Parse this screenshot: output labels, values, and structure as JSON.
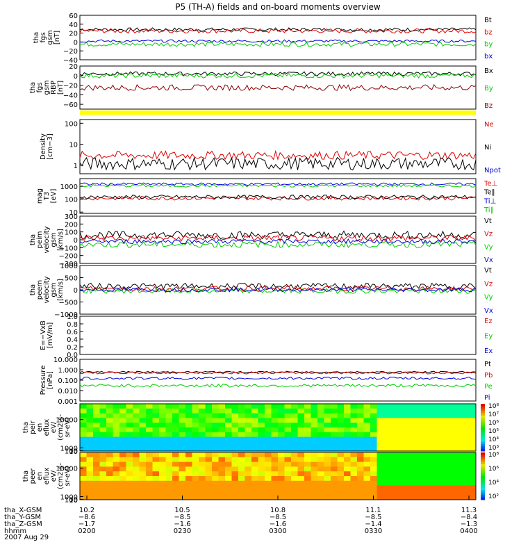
{
  "title": "P5 (TH-A) fields and on-board moments overview",
  "date": "2007 Aug 29",
  "colors": {
    "black": "#000000",
    "red": "#dd0000",
    "darkred": "#8b0000",
    "green": "#00cc00",
    "blue": "#0000dd",
    "yellow": "#ffff00"
  },
  "chart_data": [
    {
      "type": "line",
      "id": "fgs",
      "ylabel": [
        "tha",
        "fgs",
        "gsm",
        "[nT]"
      ],
      "ylim": [
        -40,
        60
      ],
      "ticks": [
        "60",
        "40",
        "20",
        "0",
        "−20",
        "−40"
      ],
      "tick_values": [
        60,
        40,
        20,
        0,
        -20,
        -40
      ],
      "series": [
        {
          "name": "Bt",
          "color": "#000000",
          "base": 28,
          "amp": 4
        },
        {
          "name": "bz",
          "color": "#dd0000",
          "base": 25,
          "amp": 5
        },
        {
          "name": "by",
          "color": "#00cc00",
          "base": -5,
          "amp": 5
        },
        {
          "name": "bx",
          "color": "#0000dd",
          "base": 2,
          "amp": 3
        }
      ]
    },
    {
      "type": "line",
      "id": "fgs_rbp",
      "ylabel": [
        "tha",
        "fgs",
        "gsm",
        "RBP",
        "[nT]"
      ],
      "ylim": [
        -70,
        20
      ],
      "ticks": [
        "20",
        "0",
        "−20",
        "−40",
        "−60"
      ],
      "tick_values": [
        20,
        0,
        -20,
        -40,
        -60
      ],
      "series": [
        {
          "name": "Bx",
          "color": "#000000",
          "base": 4,
          "amp": 4
        },
        {
          "name": "By",
          "color": "#00cc00",
          "base": 0,
          "amp": 5
        },
        {
          "name": "Bz",
          "color": "#8b0000",
          "base": -25,
          "amp": 6
        }
      ]
    },
    {
      "type": "line",
      "id": "density",
      "ylabel": [
        "Density",
        "[cm−3]"
      ],
      "ylim": [
        0.4,
        150
      ],
      "log": true,
      "ticks": [
        "100",
        "10",
        "1"
      ],
      "tick_values": [
        100,
        10,
        1
      ],
      "series": [
        {
          "name": "Ne",
          "color": "#dd0000",
          "base": 3,
          "amp": 0.4
        },
        {
          "name": "Ni",
          "color": "#000000",
          "base": 1.2,
          "amp": 0.6
        },
        {
          "name": "Npot",
          "color": "#0000dd",
          "base": 0,
          "amp": 0
        }
      ]
    },
    {
      "type": "line",
      "id": "temp",
      "ylabel": [
        "mag",
        "T3",
        "[eV]"
      ],
      "ylim": [
        8,
        4000
      ],
      "log": true,
      "ticks": [
        "1000",
        "100",
        "10"
      ],
      "tick_values": [
        1000,
        100,
        10
      ],
      "series": [
        {
          "name": "Te⊥",
          "color": "#dd0000",
          "base": 120,
          "amp": 0.3
        },
        {
          "name": "Te‖",
          "color": "#000000",
          "base": 150,
          "amp": 0.3
        },
        {
          "name": "Ti⊥",
          "color": "#0000dd",
          "base": 1500,
          "amp": 0.2
        },
        {
          "name": "Ti‖",
          "color": "#00cc00",
          "base": 1100,
          "amp": 0.2
        }
      ]
    },
    {
      "type": "line",
      "id": "peim",
      "ylabel": [
        "tha",
        "peim",
        "velocity",
        "gsm",
        "[km/s]"
      ],
      "ylim": [
        -300,
        300
      ],
      "ticks": [
        "300",
        "200",
        "100",
        "0",
        "−100",
        "−200",
        "−300"
      ],
      "tick_values": [
        300,
        200,
        100,
        0,
        -100,
        -200,
        -300
      ],
      "series": [
        {
          "name": "Vt",
          "color": "#000000",
          "base": 60,
          "amp": 50
        },
        {
          "name": "Vz",
          "color": "#dd0000",
          "base": 20,
          "amp": 40
        },
        {
          "name": "Vy",
          "color": "#00cc00",
          "base": -60,
          "amp": 40
        },
        {
          "name": "Vx",
          "color": "#0000dd",
          "base": -20,
          "amp": 30
        }
      ]
    },
    {
      "type": "line",
      "id": "peem",
      "ylabel": [
        "tha",
        "peem",
        "velocity",
        "gsm",
        "[km/s]"
      ],
      "ylim": [
        -1000,
        1000
      ],
      "ticks": [
        "1000",
        "500",
        "0",
        "−500",
        "−1000"
      ],
      "tick_values": [
        1000,
        500,
        0,
        -500,
        -1000
      ],
      "series": [
        {
          "name": "Vt",
          "color": "#000000",
          "base": 150,
          "amp": 120
        },
        {
          "name": "Vz",
          "color": "#dd0000",
          "base": 50,
          "amp": 100
        },
        {
          "name": "Vy",
          "color": "#00cc00",
          "base": -50,
          "amp": 100
        },
        {
          "name": "Vx",
          "color": "#0000dd",
          "base": 0,
          "amp": 80
        }
      ]
    },
    {
      "type": "line",
      "id": "efield",
      "ylabel": [
        "E=−VxB",
        "[mV/m]"
      ],
      "ylim": [
        0,
        1
      ],
      "ticks": [
        "1.0",
        "0.8",
        "0.6",
        "0.4",
        "0.2",
        "0.0"
      ],
      "tick_values": [
        1,
        0.8,
        0.6,
        0.4,
        0.2,
        0
      ],
      "series": [
        {
          "name": "Ez",
          "color": "#dd0000",
          "base": 0,
          "amp": 0
        },
        {
          "name": "Ey",
          "color": "#00cc00",
          "base": 0,
          "amp": 0
        },
        {
          "name": "Ex",
          "color": "#0000dd",
          "base": 0,
          "amp": 0
        }
      ]
    },
    {
      "type": "line",
      "id": "pressure",
      "ylabel": [
        "Pressure",
        "[nPa]"
      ],
      "ylim": [
        0.001,
        10
      ],
      "log": true,
      "ticks": [
        "10.000",
        "1.000",
        "0.100",
        "0.010",
        "0.001"
      ],
      "tick_values": [
        10,
        1,
        0.1,
        0.01,
        0.001
      ],
      "series": [
        {
          "name": "Pt",
          "color": "#000000",
          "base": 0.6,
          "amp": 0.15
        },
        {
          "name": "Pb",
          "color": "#dd0000",
          "base": 0.5,
          "amp": 0.2
        },
        {
          "name": "Pe",
          "color": "#00cc00",
          "base": 0.03,
          "amp": 0.3
        },
        {
          "name": "Pi",
          "color": "#0000dd",
          "base": 0.15,
          "amp": 0.25
        }
      ]
    },
    {
      "type": "heatmap",
      "id": "peir",
      "ylabel": [
        "tha",
        "peir",
        "en",
        "eflux",
        "eV/",
        "(cm2-s-",
        "sr-eV)"
      ],
      "ylim": [
        10,
        15000
      ],
      "ticks": [
        "10000",
        "1000",
        "100",
        "10"
      ],
      "tick_values": [
        10000,
        1000,
        100,
        10
      ],
      "colorbar": [
        "10⁸",
        "10⁷",
        "10⁶",
        "10⁵",
        "10⁴",
        "10³"
      ]
    },
    {
      "type": "heatmap",
      "id": "peer",
      "ylabel": [
        "tha",
        "peer",
        "en",
        "eflux",
        "eV/",
        "(cm2-s-",
        "sr-eV)"
      ],
      "ylim": [
        7,
        15000
      ],
      "ticks": [
        "10000",
        "1000",
        "100",
        "10"
      ],
      "tick_values": [
        10000,
        1000,
        100,
        10
      ],
      "colorbar": [
        "10⁸",
        "10⁶",
        "10⁴",
        "10²"
      ]
    }
  ],
  "xaxis": {
    "ticks": [
      {
        "x": "10.2",
        "y": "−8.6",
        "z": "−1.7",
        "t": "0200"
      },
      {
        "x": "10.5",
        "y": "−8.5",
        "z": "−1.6",
        "t": "0230"
      },
      {
        "x": "10.8",
        "y": "−8.5",
        "z": "−1.6",
        "t": "0300"
      },
      {
        "x": "11.1",
        "y": "−8.5",
        "z": "−1.4",
        "t": "0330"
      },
      {
        "x": "11.3",
        "y": "−8.4",
        "z": "−1.3",
        "t": "0400"
      }
    ],
    "row_labels": [
      "tha_X-GSM",
      "tha_Y-GSM",
      "tha_Z-GSM",
      "hhmm"
    ]
  }
}
